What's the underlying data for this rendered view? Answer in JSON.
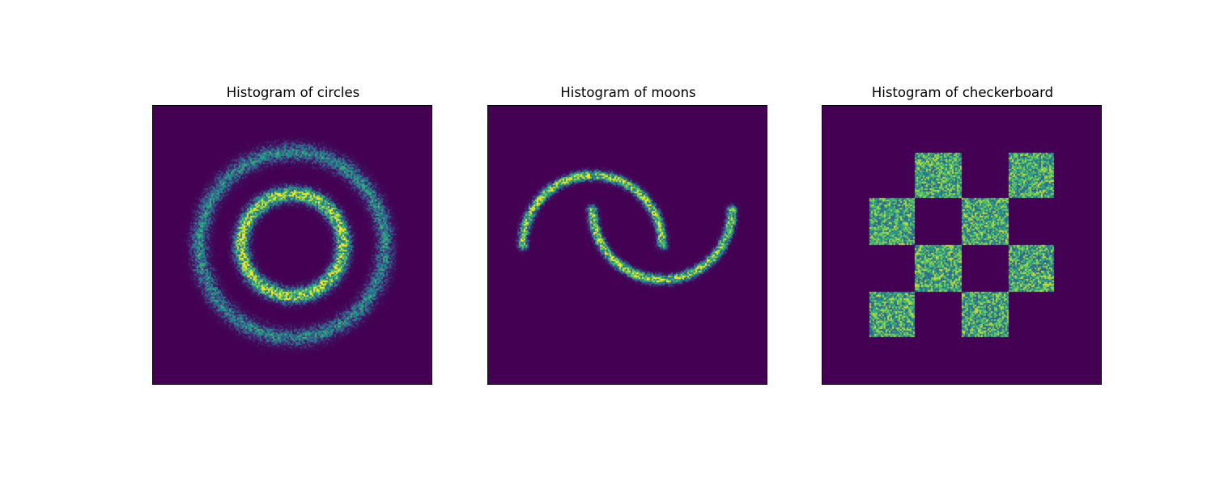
{
  "figure": {
    "background": "#ffffff",
    "colormap": "viridis",
    "colormap_stops": [
      "#440154",
      "#3b528b",
      "#21918c",
      "#5ec962",
      "#fde725"
    ]
  },
  "chart_data": [
    {
      "type": "heatmap",
      "title": "Histogram of circles",
      "dataset": "circles",
      "axes_visible": false,
      "xlim": [
        -1.5,
        1.5
      ],
      "ylim": [
        -1.5,
        1.5
      ],
      "rings": [
        {
          "radius": 1.0,
          "noise": 0.07,
          "relative_density": 0.55
        },
        {
          "radius": 0.55,
          "noise": 0.06,
          "relative_density": 1.0
        }
      ],
      "grid": false
    },
    {
      "type": "heatmap",
      "title": "Histogram of moons",
      "dataset": "moons",
      "axes_visible": false,
      "xlim": [
        -1.5,
        2.5
      ],
      "ylim": [
        -2.0,
        2.0
      ],
      "arcs": [
        {
          "center": [
            0.0,
            0.0
          ],
          "radius": 1.0,
          "from_deg": 0,
          "to_deg": 180,
          "noise": 0.05
        },
        {
          "center": [
            1.0,
            0.5
          ],
          "radius": 1.0,
          "from_deg": 180,
          "to_deg": 360,
          "noise": 0.05
        }
      ],
      "grid": false
    },
    {
      "type": "heatmap",
      "title": "Histogram of checkerboard",
      "dataset": "checkerboard",
      "axes_visible": false,
      "xlim": [
        -6,
        6
      ],
      "ylim": [
        -6,
        6
      ],
      "filled_cells": [
        [
          -2,
          2
        ],
        [
          2,
          2
        ],
        [
          -4,
          0
        ],
        [
          0,
          0
        ],
        [
          -2,
          -2
        ],
        [
          2,
          -2
        ],
        [
          -4,
          -4
        ],
        [
          0,
          -4
        ]
      ],
      "cell_size": 2,
      "grid": false
    }
  ]
}
